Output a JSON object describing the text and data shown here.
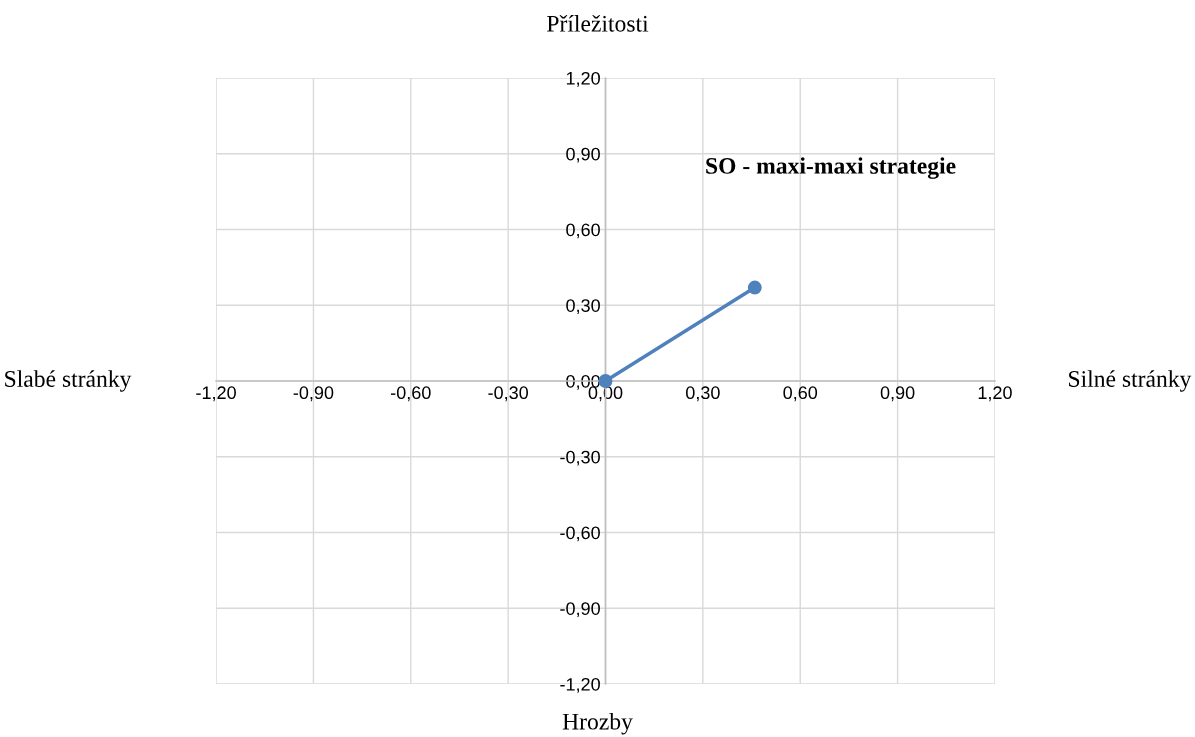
{
  "chart_data": {
    "type": "line",
    "title": "Příležitosti",
    "xlabel": "Hrozby",
    "annotations": [
      "Slabé stránky",
      "Silné stránky",
      "SO - maxi-maxi strategie"
    ],
    "series": [
      {
        "color": "#4f81bd",
        "x": [
          0,
          0.46
        ],
        "values": [
          0,
          0.37
        ]
      }
    ],
    "marker": "circle",
    "line_style": "solid",
    "grid": true,
    "legend": false,
    "xlim": [
      -1.2,
      1.2
    ],
    "ylim": [
      -1.2,
      1.2
    ],
    "xticks": [
      {
        "value": -1.2,
        "label": "-1,20"
      },
      {
        "value": -0.9,
        "label": "-0,90"
      },
      {
        "value": -0.6,
        "label": "-0,60"
      },
      {
        "value": -0.3,
        "label": "-0,30"
      },
      {
        "value": 0,
        "label": "0,00"
      },
      {
        "value": 0.3,
        "label": "0,30"
      },
      {
        "value": 0.6,
        "label": "0,60"
      },
      {
        "value": 0.9,
        "label": "0,90"
      },
      {
        "value": 1.2,
        "label": "1,20"
      }
    ],
    "yticks": [
      {
        "value": -1.2,
        "label": "-1,20"
      },
      {
        "value": -0.9,
        "label": "-0,90"
      },
      {
        "value": -0.6,
        "label": "-0,60"
      },
      {
        "value": -0.3,
        "label": "-0,30"
      },
      {
        "value": 0,
        "label": "0,00"
      },
      {
        "value": 0.3,
        "label": "0,30"
      },
      {
        "value": 0.6,
        "label": "0,60"
      },
      {
        "value": 0.9,
        "label": "0,90"
      },
      {
        "value": 1.2,
        "label": "1,20"
      }
    ]
  }
}
